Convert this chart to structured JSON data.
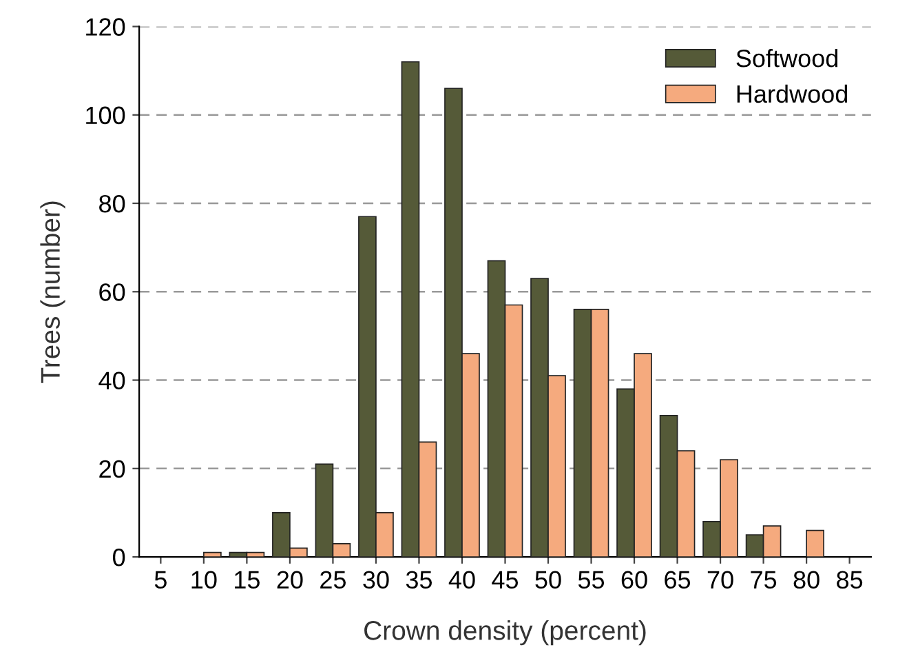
{
  "chart_data": {
    "type": "bar",
    "xlabel": "Crown density (percent)",
    "ylabel": "Trees (number)",
    "categories": [
      "5",
      "10",
      "15",
      "20",
      "25",
      "30",
      "35",
      "40",
      "45",
      "50",
      "55",
      "60",
      "65",
      "70",
      "75",
      "80",
      "85"
    ],
    "series": [
      {
        "name": "Softwood",
        "color": "#555a38",
        "values": [
          null,
          null,
          1,
          10,
          21,
          77,
          112,
          106,
          67,
          63,
          56,
          38,
          32,
          8,
          5,
          null,
          null
        ]
      },
      {
        "name": "Hardwood",
        "color": "#f5aa7e",
        "values": [
          null,
          1,
          1,
          2,
          3,
          10,
          26,
          46,
          57,
          41,
          56,
          46,
          24,
          22,
          7,
          6,
          null
        ]
      }
    ],
    "ylim": [
      0,
      120
    ],
    "yticks": [
      0,
      20,
      40,
      60,
      80,
      100,
      120
    ],
    "grid": "y",
    "legend": "top right"
  }
}
